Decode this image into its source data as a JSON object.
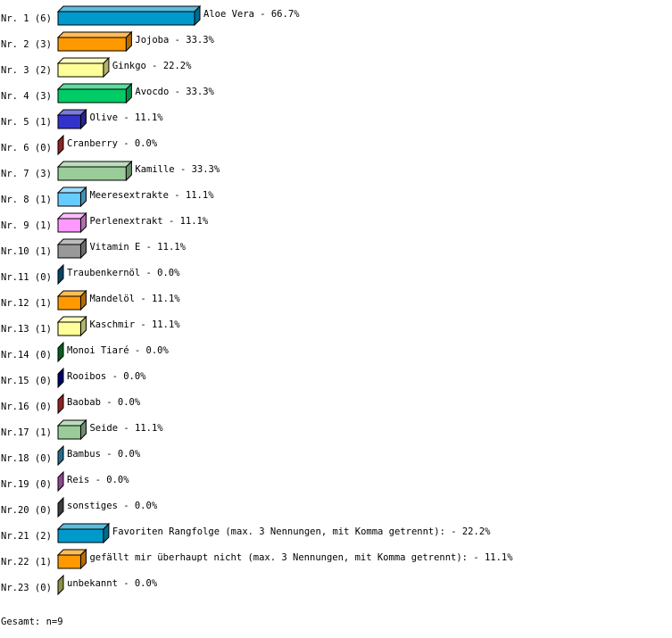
{
  "chart_data": {
    "type": "bar",
    "orientation": "horizontal",
    "style": "3d",
    "value_unit": "%",
    "categories": [
      "Aloe Vera",
      "Jojoba",
      "Ginkgo",
      "Avocdo",
      "Olive",
      "Cranberry",
      "Kamille",
      "Meeresextrakte",
      "Perlenextrakt",
      "Vitamin E",
      "Traubenkernöl",
      "Mandelöl",
      "Kaschmir",
      "Monoi Tiaré",
      "Rooibos",
      "Baobab",
      "Seide",
      "Bambus",
      "Reis",
      "sonstiges",
      "Favoriten Rangfolge (max. 3 Nennungen, mit Komma getrennt):",
      "gefällt mir überhaupt nicht (max. 3 Nennungen, mit Komma getrennt):",
      "unbekannt"
    ],
    "row_labels": [
      "Nr. 1 (6)",
      "Nr. 2 (3)",
      "Nr. 3 (2)",
      "Nr. 4 (3)",
      "Nr. 5 (1)",
      "Nr. 6 (0)",
      "Nr. 7 (3)",
      "Nr. 8 (1)",
      "Nr. 9 (1)",
      "Nr.10 (1)",
      "Nr.11 (0)",
      "Nr.12 (1)",
      "Nr.13 (1)",
      "Nr.14 (0)",
      "Nr.15 (0)",
      "Nr.16 (0)",
      "Nr.17 (1)",
      "Nr.18 (0)",
      "Nr.19 (0)",
      "Nr.20 (0)",
      "Nr.21 (2)",
      "Nr.22 (1)",
      "Nr.23 (0)"
    ],
    "counts": [
      6,
      3,
      2,
      3,
      1,
      0,
      3,
      1,
      1,
      1,
      0,
      1,
      1,
      0,
      0,
      0,
      1,
      0,
      0,
      0,
      2,
      1,
      0
    ],
    "values": [
      66.7,
      33.3,
      22.2,
      33.3,
      11.1,
      0.0,
      33.3,
      11.1,
      11.1,
      11.1,
      0.0,
      11.1,
      11.1,
      0.0,
      0.0,
      0.0,
      11.1,
      0.0,
      0.0,
      0.0,
      22.2,
      11.1,
      0.0
    ],
    "value_labels": [
      "66.7%",
      "33.3%",
      "22.2%",
      "33.3%",
      "11.1%",
      "0.0%",
      "33.3%",
      "11.1%",
      "11.1%",
      "11.1%",
      "0.0%",
      "11.1%",
      "11.1%",
      "0.0%",
      "0.0%",
      "0.0%",
      "11.1%",
      "0.0%",
      "0.0%",
      "0.0%",
      "22.2%",
      "11.1%",
      "0.0%"
    ],
    "colors": [
      "#0099cc",
      "#ff9900",
      "#ffff99",
      "#00cc66",
      "#3333cc",
      "#cc3333",
      "#99cc99",
      "#66ccff",
      "#ff99ff",
      "#999999",
      "#006699",
      "#ff9900",
      "#ffff99",
      "#008833",
      "#000099",
      "#cc3333",
      "#99cc99",
      "#3399cc",
      "#cc66cc",
      "#555555",
      "#0099cc",
      "#ff9900",
      "#cccc66"
    ]
  },
  "footer": {
    "total": "Gesamt: n=9"
  }
}
